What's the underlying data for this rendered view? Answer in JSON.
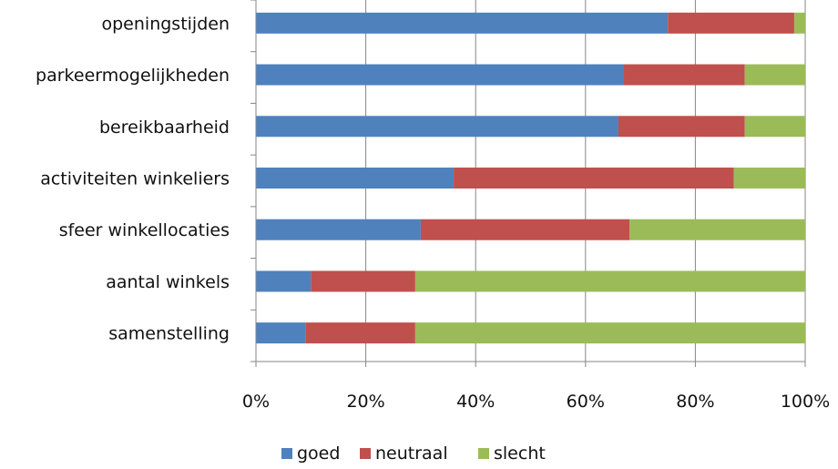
{
  "chart_data": {
    "type": "bar",
    "orientation": "horizontal",
    "stacked": "percent",
    "title": "",
    "xlabel": "",
    "ylabel": "",
    "categories": [
      "openingstijden",
      "parkeermogelijkheden",
      "bereikbaarheid",
      "activiteiten winkeliers",
      "sfeer winkellocaties",
      "aantal winkels",
      "samenstelling"
    ],
    "series": [
      {
        "name": "goed",
        "color": "#4F81BD",
        "values": [
          75,
          67,
          66,
          36,
          30,
          10,
          9
        ]
      },
      {
        "name": "neutraal",
        "color": "#C0504D",
        "values": [
          23,
          22,
          23,
          51,
          38,
          19,
          20
        ]
      },
      {
        "name": "slecht",
        "color": "#9BBB59",
        "values": [
          2,
          11,
          11,
          13,
          32,
          71,
          71
        ]
      }
    ],
    "xlim": [
      0,
      100
    ],
    "xticks": [
      "0%",
      "20%",
      "40%",
      "60%",
      "80%",
      "100%"
    ],
    "grid": true,
    "legend_position": "bottom"
  }
}
